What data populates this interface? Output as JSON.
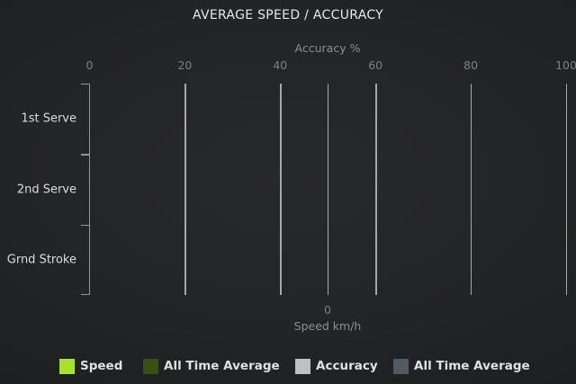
{
  "chart_data": {
    "type": "bar",
    "orientation": "horizontal",
    "title": "AVERAGE SPEED / ACCURACY",
    "categories": [
      "1st Serve",
      "2nd Serve",
      "Grnd Stroke"
    ],
    "top_axis": {
      "label": "Accuracy %",
      "tick_labels": [
        "0",
        "20",
        "40",
        "60",
        "80",
        "100"
      ],
      "range": [
        0,
        100
      ]
    },
    "bottom_axis": {
      "label": "Speed km/h",
      "tick_labels": [
        "0"
      ]
    },
    "series": [
      {
        "name": "Speed",
        "color": "#a7e22d",
        "values": []
      },
      {
        "name": "All Time Average",
        "color": "#375110",
        "values": []
      },
      {
        "name": "Accuracy",
        "color": "#bcc2c4",
        "values": []
      },
      {
        "name": "All Time Average",
        "color": "#505a63",
        "values": []
      }
    ],
    "legend_position": "bottom",
    "grid": "vertical gridlines at top-axis ticks plus bottom-axis zero",
    "plotted_bars": "none — plot area is empty"
  },
  "colors": {
    "background_center": "#28292b",
    "background_edge": "#1a1a1b",
    "title_text": "#e8e8e8",
    "axis_label_text": "#8e8e8e",
    "tick_text": "#7f7f7f",
    "category_text": "#dcdcdc",
    "legend_text": "#e0e0e0",
    "gridline": "#bfbfbf",
    "axis_line": "#969696"
  }
}
